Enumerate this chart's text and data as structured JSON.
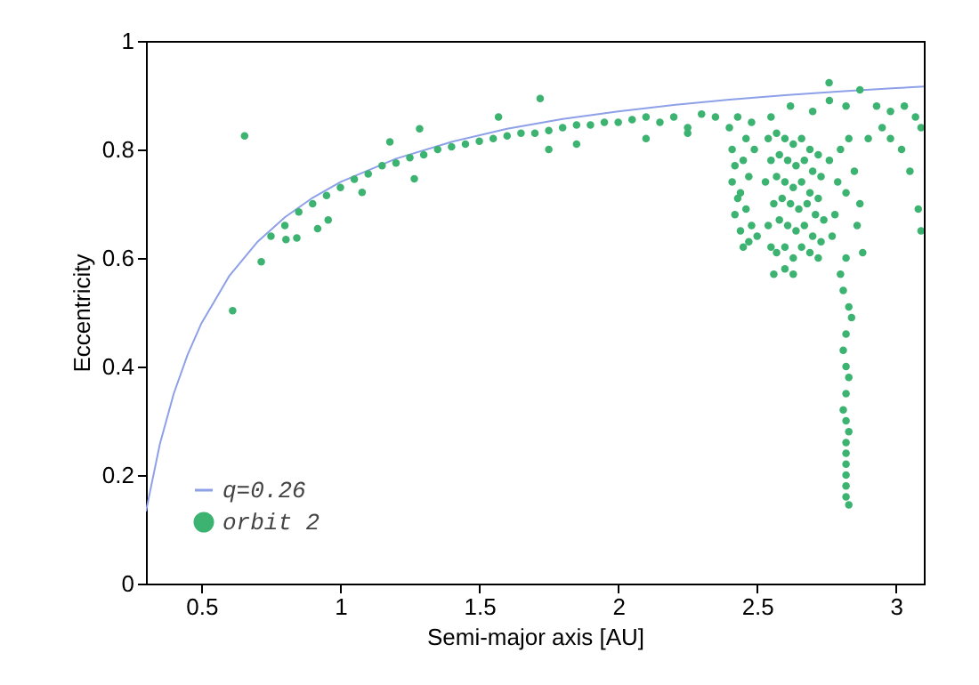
{
  "chart_data": {
    "type": "scatter",
    "xlabel": "Semi-major axis [AU]",
    "ylabel": "Eccentricity",
    "xlim": [
      0.3,
      3.1
    ],
    "xticks": [
      0.5,
      1,
      1.5,
      2,
      2.5,
      3
    ],
    "ylim": [
      0,
      1
    ],
    "yticks": [
      0,
      0.2,
      0.4,
      0.6,
      0.8,
      1
    ],
    "grid": false,
    "legend": "bottom left",
    "series": [
      {
        "name": "q=0.26",
        "type": "line",
        "color": "#8da0e8",
        "x": [
          0.3,
          0.35,
          0.4,
          0.45,
          0.5,
          0.6,
          0.7,
          0.8,
          0.9,
          1.0,
          1.2,
          1.4,
          1.6,
          1.8,
          2.0,
          2.2,
          2.4,
          2.6,
          2.8,
          3.0,
          3.1
        ],
        "values": [
          0.133,
          0.257,
          0.35,
          0.422,
          0.48,
          0.567,
          0.629,
          0.675,
          0.711,
          0.74,
          0.783,
          0.814,
          0.838,
          0.856,
          0.87,
          0.882,
          0.892,
          0.9,
          0.907,
          0.913,
          0.916
        ]
      },
      {
        "name": "orbit 2",
        "type": "scatter",
        "marker": "circle",
        "color": "#3cb371",
        "x": [
          0.655,
          0.612,
          0.715,
          1.719,
          1.285,
          1.178,
          1.569,
          2.759,
          1.266,
          1.078,
          0.956,
          0.918,
          0.843,
          0.804,
          0.75,
          0.8,
          0.85,
          0.9,
          0.95,
          1.0,
          1.05,
          1.1,
          1.15,
          1.2,
          1.25,
          1.3,
          1.35,
          1.4,
          1.45,
          1.5,
          1.55,
          1.6,
          1.65,
          1.7,
          1.75,
          1.8,
          1.85,
          1.9,
          1.95,
          2.0,
          2.05,
          2.1,
          2.15,
          2.2,
          2.25,
          2.3,
          2.35,
          1.75,
          2.25,
          1.85,
          2.1,
          2.4,
          2.41,
          2.42,
          2.41,
          2.43,
          2.42,
          2.44,
          2.45,
          2.46,
          2.45,
          2.47,
          2.44,
          2.46,
          2.48,
          2.47,
          2.43,
          2.49,
          2.5,
          2.48,
          2.54,
          2.55,
          2.53,
          2.56,
          2.54,
          2.55,
          2.57,
          2.58,
          2.57,
          2.59,
          2.58,
          2.57,
          2.6,
          2.61,
          2.6,
          2.62,
          2.61,
          2.6,
          2.63,
          2.64,
          2.63,
          2.65,
          2.64,
          2.63,
          2.66,
          2.67,
          2.66,
          2.68,
          2.67,
          2.66,
          2.69,
          2.7,
          2.69,
          2.71,
          2.7,
          2.69,
          2.72,
          2.73,
          2.72,
          2.74,
          2.73,
          2.72,
          2.56,
          2.63,
          2.6,
          2.76,
          2.79,
          2.82,
          2.85,
          2.87,
          2.86,
          2.78,
          2.8,
          2.83,
          2.77,
          2.88,
          2.55,
          2.62,
          2.7,
          2.76,
          2.82,
          2.87,
          2.93,
          2.98,
          3.03,
          3.07,
          2.95,
          3.02,
          3.05,
          3.09,
          3.08,
          3.09,
          2.9,
          2.98,
          2.82,
          2.8,
          2.81,
          2.83,
          2.84,
          2.82,
          2.81,
          2.82,
          2.83,
          2.82,
          2.81,
          2.82,
          2.83,
          2.82,
          2.82,
          2.82,
          2.82,
          2.82,
          2.82,
          2.83
        ],
        "values": [
          0.825,
          0.503,
          0.593,
          0.894,
          0.838,
          0.814,
          0.86,
          0.923,
          0.746,
          0.721,
          0.67,
          0.654,
          0.637,
          0.634,
          0.64,
          0.66,
          0.685,
          0.7,
          0.715,
          0.73,
          0.745,
          0.755,
          0.77,
          0.775,
          0.785,
          0.79,
          0.8,
          0.805,
          0.81,
          0.815,
          0.82,
          0.825,
          0.83,
          0.83,
          0.835,
          0.84,
          0.845,
          0.845,
          0.85,
          0.85,
          0.855,
          0.86,
          0.85,
          0.86,
          0.84,
          0.865,
          0.86,
          0.8,
          0.83,
          0.81,
          0.82,
          0.84,
          0.8,
          0.77,
          0.74,
          0.71,
          0.68,
          0.65,
          0.62,
          0.82,
          0.78,
          0.75,
          0.72,
          0.69,
          0.66,
          0.63,
          0.86,
          0.8,
          0.64,
          0.85,
          0.82,
          0.78,
          0.74,
          0.7,
          0.66,
          0.62,
          0.83,
          0.79,
          0.75,
          0.71,
          0.67,
          0.61,
          0.82,
          0.78,
          0.74,
          0.7,
          0.66,
          0.62,
          0.81,
          0.77,
          0.73,
          0.69,
          0.65,
          0.6,
          0.82,
          0.78,
          0.74,
          0.7,
          0.66,
          0.62,
          0.8,
          0.76,
          0.72,
          0.68,
          0.64,
          0.61,
          0.79,
          0.75,
          0.71,
          0.67,
          0.63,
          0.6,
          0.57,
          0.57,
          0.58,
          0.78,
          0.74,
          0.72,
          0.76,
          0.7,
          0.66,
          0.68,
          0.8,
          0.82,
          0.64,
          0.61,
          0.86,
          0.88,
          0.87,
          0.89,
          0.88,
          0.91,
          0.88,
          0.87,
          0.88,
          0.86,
          0.84,
          0.8,
          0.76,
          0.84,
          0.69,
          0.65,
          0.82,
          0.82,
          0.6,
          0.57,
          0.54,
          0.51,
          0.49,
          0.46,
          0.43,
          0.4,
          0.38,
          0.35,
          0.32,
          0.3,
          0.28,
          0.26,
          0.24,
          0.22,
          0.2,
          0.18,
          0.16,
          0.145
        ]
      }
    ]
  }
}
